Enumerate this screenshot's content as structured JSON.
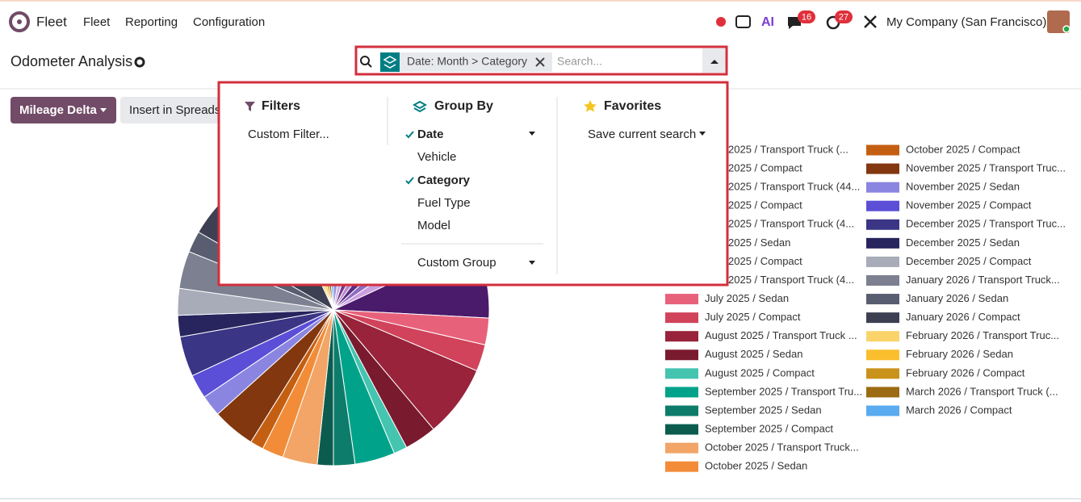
{
  "navbar": {
    "app": "Fleet",
    "menu": [
      "Fleet",
      "Reporting",
      "Configuration"
    ],
    "badges": [
      16,
      27
    ],
    "company": "My Company (San Francisco)"
  },
  "control_panel": {
    "title": "Odometer Analysis",
    "facet": "Date: Month > Category",
    "search_placeholder": "Search...",
    "buttons": [
      "Mileage Delta",
      "Insert in Spreads"
    ]
  },
  "dropdown": {
    "filters": {
      "title": "Filters",
      "items": [
        "Custom Filter..."
      ]
    },
    "group_by": {
      "title": "Group By",
      "items": [
        {
          "label": "Date",
          "checked": true
        },
        {
          "label": "Vehicle",
          "checked": false
        },
        {
          "label": "Category",
          "checked": true
        },
        {
          "label": "Fuel Type",
          "checked": false
        },
        {
          "label": "Model",
          "checked": false
        }
      ],
      "custom": "Custom Group"
    },
    "favorites": {
      "title": "Favorites",
      "items": [
        "Save current search"
      ]
    }
  },
  "chart_data": {
    "type": "pie",
    "categories": [
      "2025 / Transport Truck (...",
      "2025 / Compact",
      "2025 / Transport Truck (44...",
      "2025 / Compact",
      "2025 / Transport Truck (4...",
      "2025 / Sedan",
      "2025 / Compact",
      "2025 / Transport Truck (4...",
      "July 2025 / Sedan",
      "July 2025 / Compact",
      "August 2025 / Transport Truck ...",
      "August 2025 / Sedan",
      "August 2025 / Compact",
      "September 2025 / Transport Tru...",
      "September 2025 / Sedan",
      "September 2025 / Compact",
      "October 2025 / Transport Truck...",
      "October 2025 / Sedan",
      "October 2025 / Compact",
      "November 2025 / Transport Truc...",
      "November 2025 / Sedan",
      "November 2025 / Compact",
      "December 2025 / Transport Truc...",
      "December 2025 / Sedan",
      "December 2025 / Compact",
      "January 2026 / Transport Truck...",
      "January 2026 / Sedan",
      "January 2026 / Compact",
      "February 2026 / Transport Truc...",
      "February 2026 / Sedan",
      "February 2026 / Compact",
      "March 2026 / Transport Truck (...",
      "March 2026 / Compact"
    ],
    "values": [
      9,
      9,
      10,
      9,
      10,
      9,
      9,
      28,
      10,
      10,
      27,
      12,
      5,
      15,
      8,
      6,
      13,
      8,
      5,
      16,
      8,
      9,
      15,
      8,
      10,
      14,
      8,
      35,
      5,
      5,
      5,
      5,
      5
    ],
    "colors": [
      "#9b8fd9",
      "#c5b3e6",
      "#7c3a8c",
      "#b388c9",
      "#5a2d82",
      "#8e6cc0",
      "#cba0e0",
      "#4a1a6b",
      "#e8617a",
      "#d1435b",
      "#98233a",
      "#7a1a2e",
      "#45c4b0",
      "#00a38a",
      "#0e7c6b",
      "#0b5c4f",
      "#f2a566",
      "#f28c38",
      "#c45f12",
      "#82370f",
      "#8a85e0",
      "#5a4fd6",
      "#3a3585",
      "#27245e",
      "#a8abb8",
      "#7c8090",
      "#585d70",
      "#3c4052",
      "#fad46b",
      "#fbbf2e",
      "#c9921a",
      "#9c6a12",
      "#5aabf0"
    ]
  }
}
